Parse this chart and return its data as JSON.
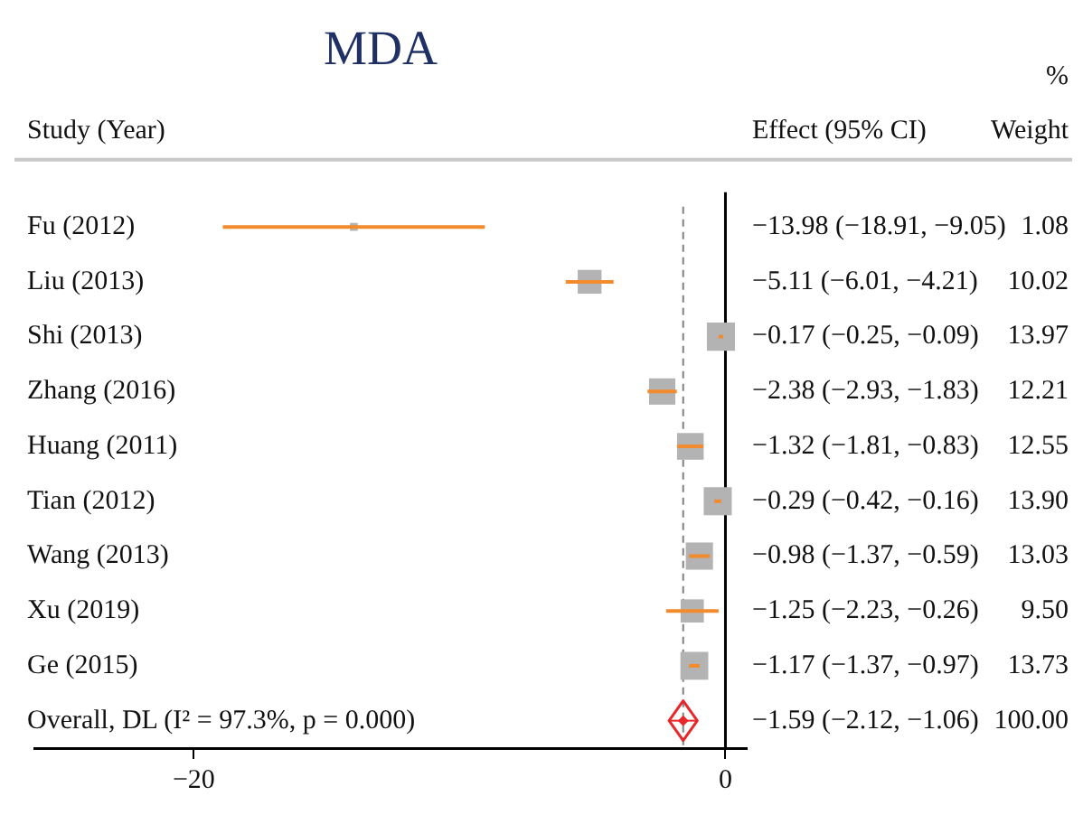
{
  "chart_data": {
    "type": "scatter",
    "title": "MDA",
    "ylabel": "Study (Year)",
    "orientation": "horizontal",
    "categories": [
      "Fu (2012)",
      "Liu (2013)",
      "Shi (2013)",
      "Zhang (2016)",
      "Huang (2011)",
      "Tian (2012)",
      "Wang (2013)",
      "Xu (2019)",
      "Ge (2015)",
      "Overall, DL (I² = 97.3%, p = 0.000)"
    ],
    "series": [
      {
        "type": "bubble",
        "color": "#b3b3b3",
        "values": [
          -13.98,
          -5.11,
          -0.17,
          -2.38,
          -1.32,
          -0.29,
          -0.98,
          -1.25,
          -1.17,
          null
        ],
        "errors": [
          [
            -18.91,
            -9.05
          ],
          [
            -6.01,
            -4.21
          ],
          [
            -0.25,
            -0.09
          ],
          [
            -2.93,
            -1.83
          ],
          [
            -1.81,
            -0.83
          ],
          [
            -0.42,
            -0.16
          ],
          [
            -1.37,
            -0.59
          ],
          [
            -2.23,
            -0.26
          ],
          [
            -1.37,
            -0.97
          ],
          null
        ],
        "sizes": [
          0.077,
          0.717,
          1,
          0.874,
          0.898,
          0.995,
          0.933,
          0.68,
          0.983,
          null
        ]
      },
      {
        "type": "scatter",
        "marker": "diamond",
        "color": "#e8272a",
        "values": [
          null,
          null,
          null,
          null,
          null,
          null,
          null,
          null,
          null,
          -1.59
        ],
        "errors": [
          null,
          null,
          null,
          null,
          null,
          null,
          null,
          null,
          null,
          [
            -2.12,
            -1.06
          ]
        ]
      }
    ],
    "xlim": [
      -26,
      0.8
    ],
    "xticks": [
      {
        "value": -20,
        "label": "−20"
      },
      0
    ],
    "ref_lines": [
      {
        "axis": "x",
        "value": 0,
        "color": "#000000",
        "line_style": "solid"
      },
      {
        "axis": "x",
        "value": -1.59,
        "color": "#808080",
        "line_style": "dashed"
      }
    ],
    "annotations": [
      "%",
      "Effect (95% CI)",
      "Weight",
      "−13.98 (−18.91, −9.05)",
      "−5.11 (−6.01, −4.21)",
      "−0.17 (−0.25, −0.09)",
      "−2.38 (−2.93, −1.83)",
      "−1.32 (−1.81, −0.83)",
      "−0.29 (−0.42, −0.16)",
      "−0.98 (−1.37, −0.59)",
      "−1.25 (−2.23, −0.26)",
      "−1.17 (−1.37, −0.97)",
      "−1.59 (−2.12, −1.06)",
      "1.08",
      "10.02",
      "13.97",
      "12.21",
      "12.55",
      "13.90",
      "13.03",
      "9.50",
      "13.73",
      "100.00"
    ],
    "grid": false,
    "legend": false
  }
}
